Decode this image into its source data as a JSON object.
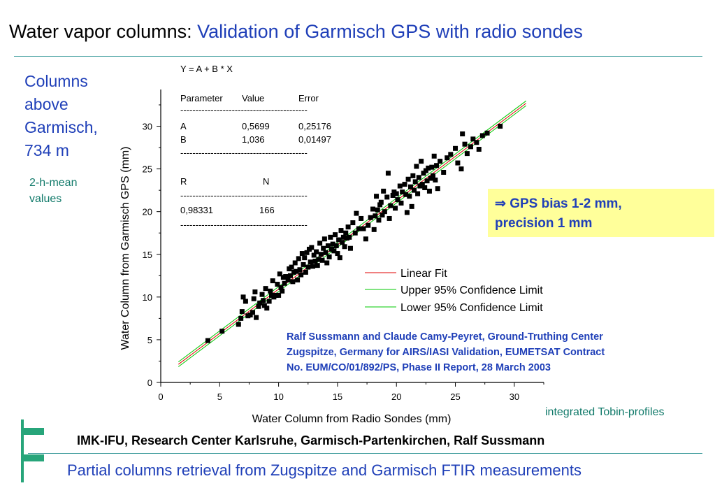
{
  "header": {
    "title_prefix": "Water vapor columns:",
    "title_highlight": "Validation of Garmisch GPS with radio sondes"
  },
  "side": {
    "label_lines": [
      "Columns",
      "above",
      "Garmisch,",
      "734 m"
    ],
    "sub_lines": [
      "2-h-mean",
      "values"
    ]
  },
  "fit_table": {
    "equation": "Y = A + B * X",
    "head": [
      "Parameter",
      "Value",
      "Error"
    ],
    "separator": "------------------------------------------",
    "rows": [
      [
        "A",
        "0,5699",
        "0,25176"
      ],
      [
        "B",
        "1,036",
        "0,01497"
      ]
    ],
    "r_label": "R",
    "n_label": "N",
    "r_value": "0,98331",
    "n_value": "166"
  },
  "bias_box": {
    "line1": "⇒ GPS bias 1-2 mm,",
    "line2": "precision 1 mm"
  },
  "citation": {
    "line1": "Ralf Sussmann and Claude Camy-Peyret, Ground-Truthing Center",
    "line2": "Zugspitze, Germany for AIRS/IASI Validation, EUMETSAT Contract",
    "line3": "No. EUM/CO/01/892/PS, Phase II Report, 28 March 2003"
  },
  "tobin": "integrated Tobin-profiles",
  "footer": {
    "line1": "IMK-IFU, Research Center Karlsruhe, Garmisch-Partenkirchen, Ralf Sussmann",
    "line2": "Partial columns retrieval from Zugspitze and Garmisch FTIR measurements"
  },
  "colors": {
    "accent_blue": "#1f3fb8",
    "teal": "#117a6a",
    "fit_red": "#e00000",
    "conf_green": "#00c800",
    "box_yellow": "#ffff9a"
  },
  "chart_data": {
    "type": "scatter",
    "xlabel": "Water Column from Radio Sondes  (mm)",
    "ylabel": "Water Column from Garmisch GPS  (mm)",
    "xlim": [
      0,
      32.5
    ],
    "ylim": [
      0,
      34.3
    ],
    "xticks": [
      0,
      5,
      10,
      15,
      20,
      25,
      30
    ],
    "yticks": [
      0,
      5,
      10,
      15,
      20,
      25,
      30
    ],
    "fit": {
      "A": 0.5699,
      "B": 1.036,
      "x_range": [
        1.5,
        31
      ]
    },
    "confidence_band": 0.28,
    "legend": [
      {
        "label": "Linear Fit",
        "color": "#e00000"
      },
      {
        "label": "Upper 95% Confidence Limit",
        "color": "#00c800"
      },
      {
        "label": "Lower 95% Confidence Limit",
        "color": "#00c800"
      }
    ],
    "points": [
      [
        4.0,
        4.9
      ],
      [
        5.2,
        6.0
      ],
      [
        6.6,
        6.8
      ],
      [
        6.8,
        7.5
      ],
      [
        6.9,
        8.3
      ],
      [
        7.0,
        10.0
      ],
      [
        7.2,
        9.5
      ],
      [
        7.4,
        7.8
      ],
      [
        7.6,
        7.9
      ],
      [
        7.8,
        8.2
      ],
      [
        7.9,
        9.8
      ],
      [
        8.0,
        10.6
      ],
      [
        8.1,
        7.6
      ],
      [
        8.3,
        8.9
      ],
      [
        8.4,
        9.3
      ],
      [
        8.6,
        10.3
      ],
      [
        8.7,
        9.6
      ],
      [
        8.8,
        9.0
      ],
      [
        8.9,
        11.0
      ],
      [
        9.0,
        8.7
      ],
      [
        9.2,
        9.5
      ],
      [
        9.3,
        10.7
      ],
      [
        9.4,
        10.2
      ],
      [
        9.5,
        11.9
      ],
      [
        9.6,
        10.0
      ],
      [
        9.8,
        10.2
      ],
      [
        9.9,
        11.5
      ],
      [
        10.0,
        10.2
      ],
      [
        10.1,
        12.7
      ],
      [
        10.2,
        11.1
      ],
      [
        10.3,
        10.7
      ],
      [
        10.4,
        12.3
      ],
      [
        10.5,
        11.6
      ],
      [
        10.6,
        12.4
      ],
      [
        10.8,
        12.0
      ],
      [
        10.9,
        13.3
      ],
      [
        11.0,
        12.5
      ],
      [
        11.1,
        13.5
      ],
      [
        11.2,
        11.8
      ],
      [
        11.3,
        12.9
      ],
      [
        11.4,
        14.0
      ],
      [
        11.5,
        13.0
      ],
      [
        11.6,
        12.0
      ],
      [
        11.7,
        14.5
      ],
      [
        11.8,
        13.2
      ],
      [
        11.9,
        12.6
      ],
      [
        12.0,
        15.1
      ],
      [
        12.1,
        13.8
      ],
      [
        12.2,
        14.6
      ],
      [
        12.3,
        12.9
      ],
      [
        12.4,
        15.2
      ],
      [
        12.5,
        13.5
      ],
      [
        12.6,
        15.6
      ],
      [
        12.7,
        14.1
      ],
      [
        12.8,
        15.8
      ],
      [
        12.9,
        13.6
      ],
      [
        13.0,
        14.9
      ],
      [
        13.1,
        14.2
      ],
      [
        13.2,
        15.3
      ],
      [
        13.3,
        13.7
      ],
      [
        13.4,
        14.4
      ],
      [
        13.5,
        16.3
      ],
      [
        13.6,
        15.0
      ],
      [
        13.7,
        14.3
      ],
      [
        13.8,
        15.7
      ],
      [
        13.9,
        16.8
      ],
      [
        14.0,
        15.2
      ],
      [
        14.1,
        14.0
      ],
      [
        14.2,
        16.0
      ],
      [
        14.3,
        14.7
      ],
      [
        14.4,
        17.0
      ],
      [
        14.5,
        15.6
      ],
      [
        14.6,
        16.2
      ],
      [
        14.7,
        15.4
      ],
      [
        14.8,
        17.3
      ],
      [
        14.9,
        16.0
      ],
      [
        15.0,
        15.1
      ],
      [
        15.1,
        16.7
      ],
      [
        15.2,
        14.6
      ],
      [
        15.3,
        17.8
      ],
      [
        15.4,
        16.4
      ],
      [
        15.5,
        17.0
      ],
      [
        15.6,
        15.9
      ],
      [
        15.7,
        17.5
      ],
      [
        15.8,
        16.9
      ],
      [
        15.9,
        18.2
      ],
      [
        16.0,
        17.0
      ],
      [
        16.1,
        15.7
      ],
      [
        16.3,
        18.7
      ],
      [
        16.5,
        17.5
      ],
      [
        16.6,
        19.8
      ],
      [
        16.8,
        18.0
      ],
      [
        17.0,
        19.2
      ],
      [
        17.2,
        18.0
      ],
      [
        17.4,
        16.8
      ],
      [
        17.6,
        18.4
      ],
      [
        17.8,
        19.3
      ],
      [
        18.0,
        20.3
      ],
      [
        18.1,
        17.9
      ],
      [
        18.2,
        19.5
      ],
      [
        18.3,
        21.8
      ],
      [
        18.4,
        20.2
      ],
      [
        18.5,
        19.0
      ],
      [
        18.6,
        20.8
      ],
      [
        18.7,
        21.1
      ],
      [
        18.8,
        19.6
      ],
      [
        18.9,
        22.4
      ],
      [
        19.0,
        20.0
      ],
      [
        19.2,
        21.7
      ],
      [
        19.3,
        24.5
      ],
      [
        19.4,
        19.2
      ],
      [
        19.5,
        20.7
      ],
      [
        19.7,
        21.9
      ],
      [
        19.8,
        22.3
      ],
      [
        19.9,
        20.4
      ],
      [
        20.0,
        22.1
      ],
      [
        20.1,
        21.4
      ],
      [
        20.3,
        23.0
      ],
      [
        20.4,
        21.0
      ],
      [
        20.5,
        22.3
      ],
      [
        20.7,
        23.2
      ],
      [
        20.8,
        22.0
      ],
      [
        20.9,
        19.9
      ],
      [
        21.0,
        23.8
      ],
      [
        21.1,
        21.8
      ],
      [
        21.2,
        22.9
      ],
      [
        21.3,
        20.6
      ],
      [
        21.4,
        24.2
      ],
      [
        21.5,
        22.5
      ],
      [
        21.6,
        23.5
      ],
      [
        21.7,
        25.3
      ],
      [
        21.8,
        22.1
      ],
      [
        21.9,
        24.0
      ],
      [
        22.0,
        23.0
      ],
      [
        22.1,
        25.9
      ],
      [
        22.2,
        23.2
      ],
      [
        22.3,
        24.5
      ],
      [
        22.4,
        22.8
      ],
      [
        22.5,
        24.8
      ],
      [
        22.6,
        23.6
      ],
      [
        22.7,
        25.1
      ],
      [
        22.8,
        22.4
      ],
      [
        22.9,
        23.9
      ],
      [
        23.0,
        25.2
      ],
      [
        23.1,
        24.2
      ],
      [
        23.2,
        26.5
      ],
      [
        23.3,
        23.7
      ],
      [
        23.4,
        25.4
      ],
      [
        23.5,
        22.7
      ],
      [
        23.7,
        25.9
      ],
      [
        24.0,
        24.6
      ],
      [
        24.3,
        26.3
      ],
      [
        24.6,
        26.7
      ],
      [
        25.0,
        27.4
      ],
      [
        25.2,
        25.7
      ],
      [
        25.5,
        25.0
      ],
      [
        25.6,
        29.1
      ],
      [
        25.8,
        27.9
      ],
      [
        26.0,
        26.8
      ],
      [
        26.3,
        27.6
      ],
      [
        26.5,
        28.5
      ],
      [
        26.8,
        28.1
      ],
      [
        27.0,
        27.3
      ],
      [
        27.3,
        28.9
      ],
      [
        27.7,
        29.2
      ],
      [
        28.8,
        30.0
      ]
    ]
  }
}
